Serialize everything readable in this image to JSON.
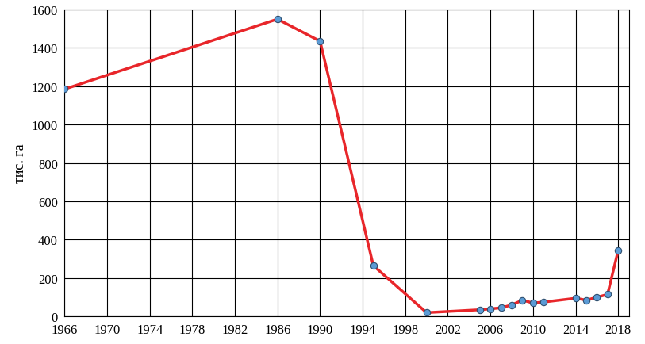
{
  "chart_data": {
    "type": "line",
    "y_label": "тис. га",
    "x": [
      1966,
      1986,
      1990,
      1995,
      2000,
      2005,
      2006,
      2007,
      2008,
      2009,
      2010,
      2011,
      2014,
      2015,
      2016,
      2017,
      2018
    ],
    "values": [
      1185,
      1550,
      1435,
      265,
      20,
      35,
      40,
      45,
      60,
      85,
      70,
      75,
      95,
      85,
      100,
      115,
      345
    ],
    "color": "#e8262a",
    "marker": "o",
    "line_style": "solid",
    "xlim": [
      1966,
      2019
    ],
    "xticks": [
      1966,
      1970,
      1974,
      1978,
      1982,
      1986,
      1990,
      1994,
      1998,
      2002,
      2006,
      2010,
      2014,
      2018
    ],
    "ylim": [
      0,
      1600
    ],
    "yticks": [
      0,
      200,
      400,
      600,
      800,
      1000,
      1200,
      1400,
      1600
    ],
    "grid": true
  }
}
